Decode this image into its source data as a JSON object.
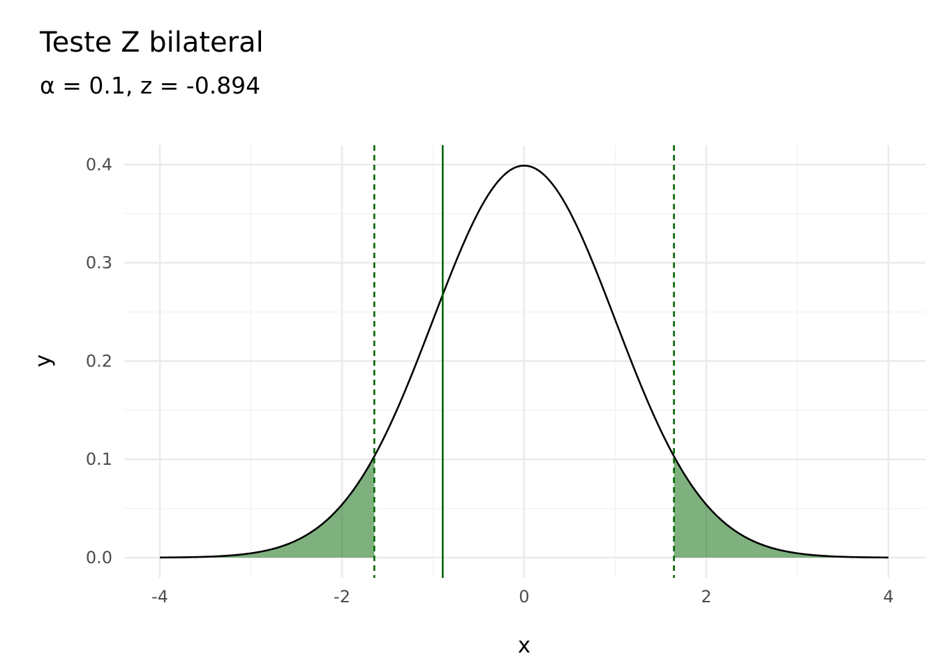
{
  "chart_data": {
    "type": "area",
    "title": "Teste Z bilateral",
    "subtitle": "α = 0.1, z =  -0.894",
    "xlabel": "x",
    "ylabel": "y",
    "xlim": [
      -4,
      4
    ],
    "ylim": [
      0,
      0.4
    ],
    "x_ticks": [
      -4,
      -2,
      0,
      2,
      4
    ],
    "x_tick_labels": [
      "-4",
      "-2",
      "0",
      "2",
      "4"
    ],
    "y_ticks": [
      0.0,
      0.1,
      0.2,
      0.3,
      0.4
    ],
    "y_tick_labels": [
      "0.0",
      "0.1",
      "0.2",
      "0.3",
      "0.4"
    ],
    "grid": true,
    "legend": "none",
    "distribution": "standard normal density",
    "alpha": 0.1,
    "z_statistic": -0.894,
    "critical_values": [
      -1.645,
      1.645
    ],
    "rejection_regions": [
      [
        -4,
        -1.645
      ],
      [
        1.645,
        4
      ]
    ],
    "colors": {
      "curve": "#000000",
      "rejection_fill": "#006400",
      "critical_line": "#006400",
      "z_line": "#006400"
    }
  }
}
